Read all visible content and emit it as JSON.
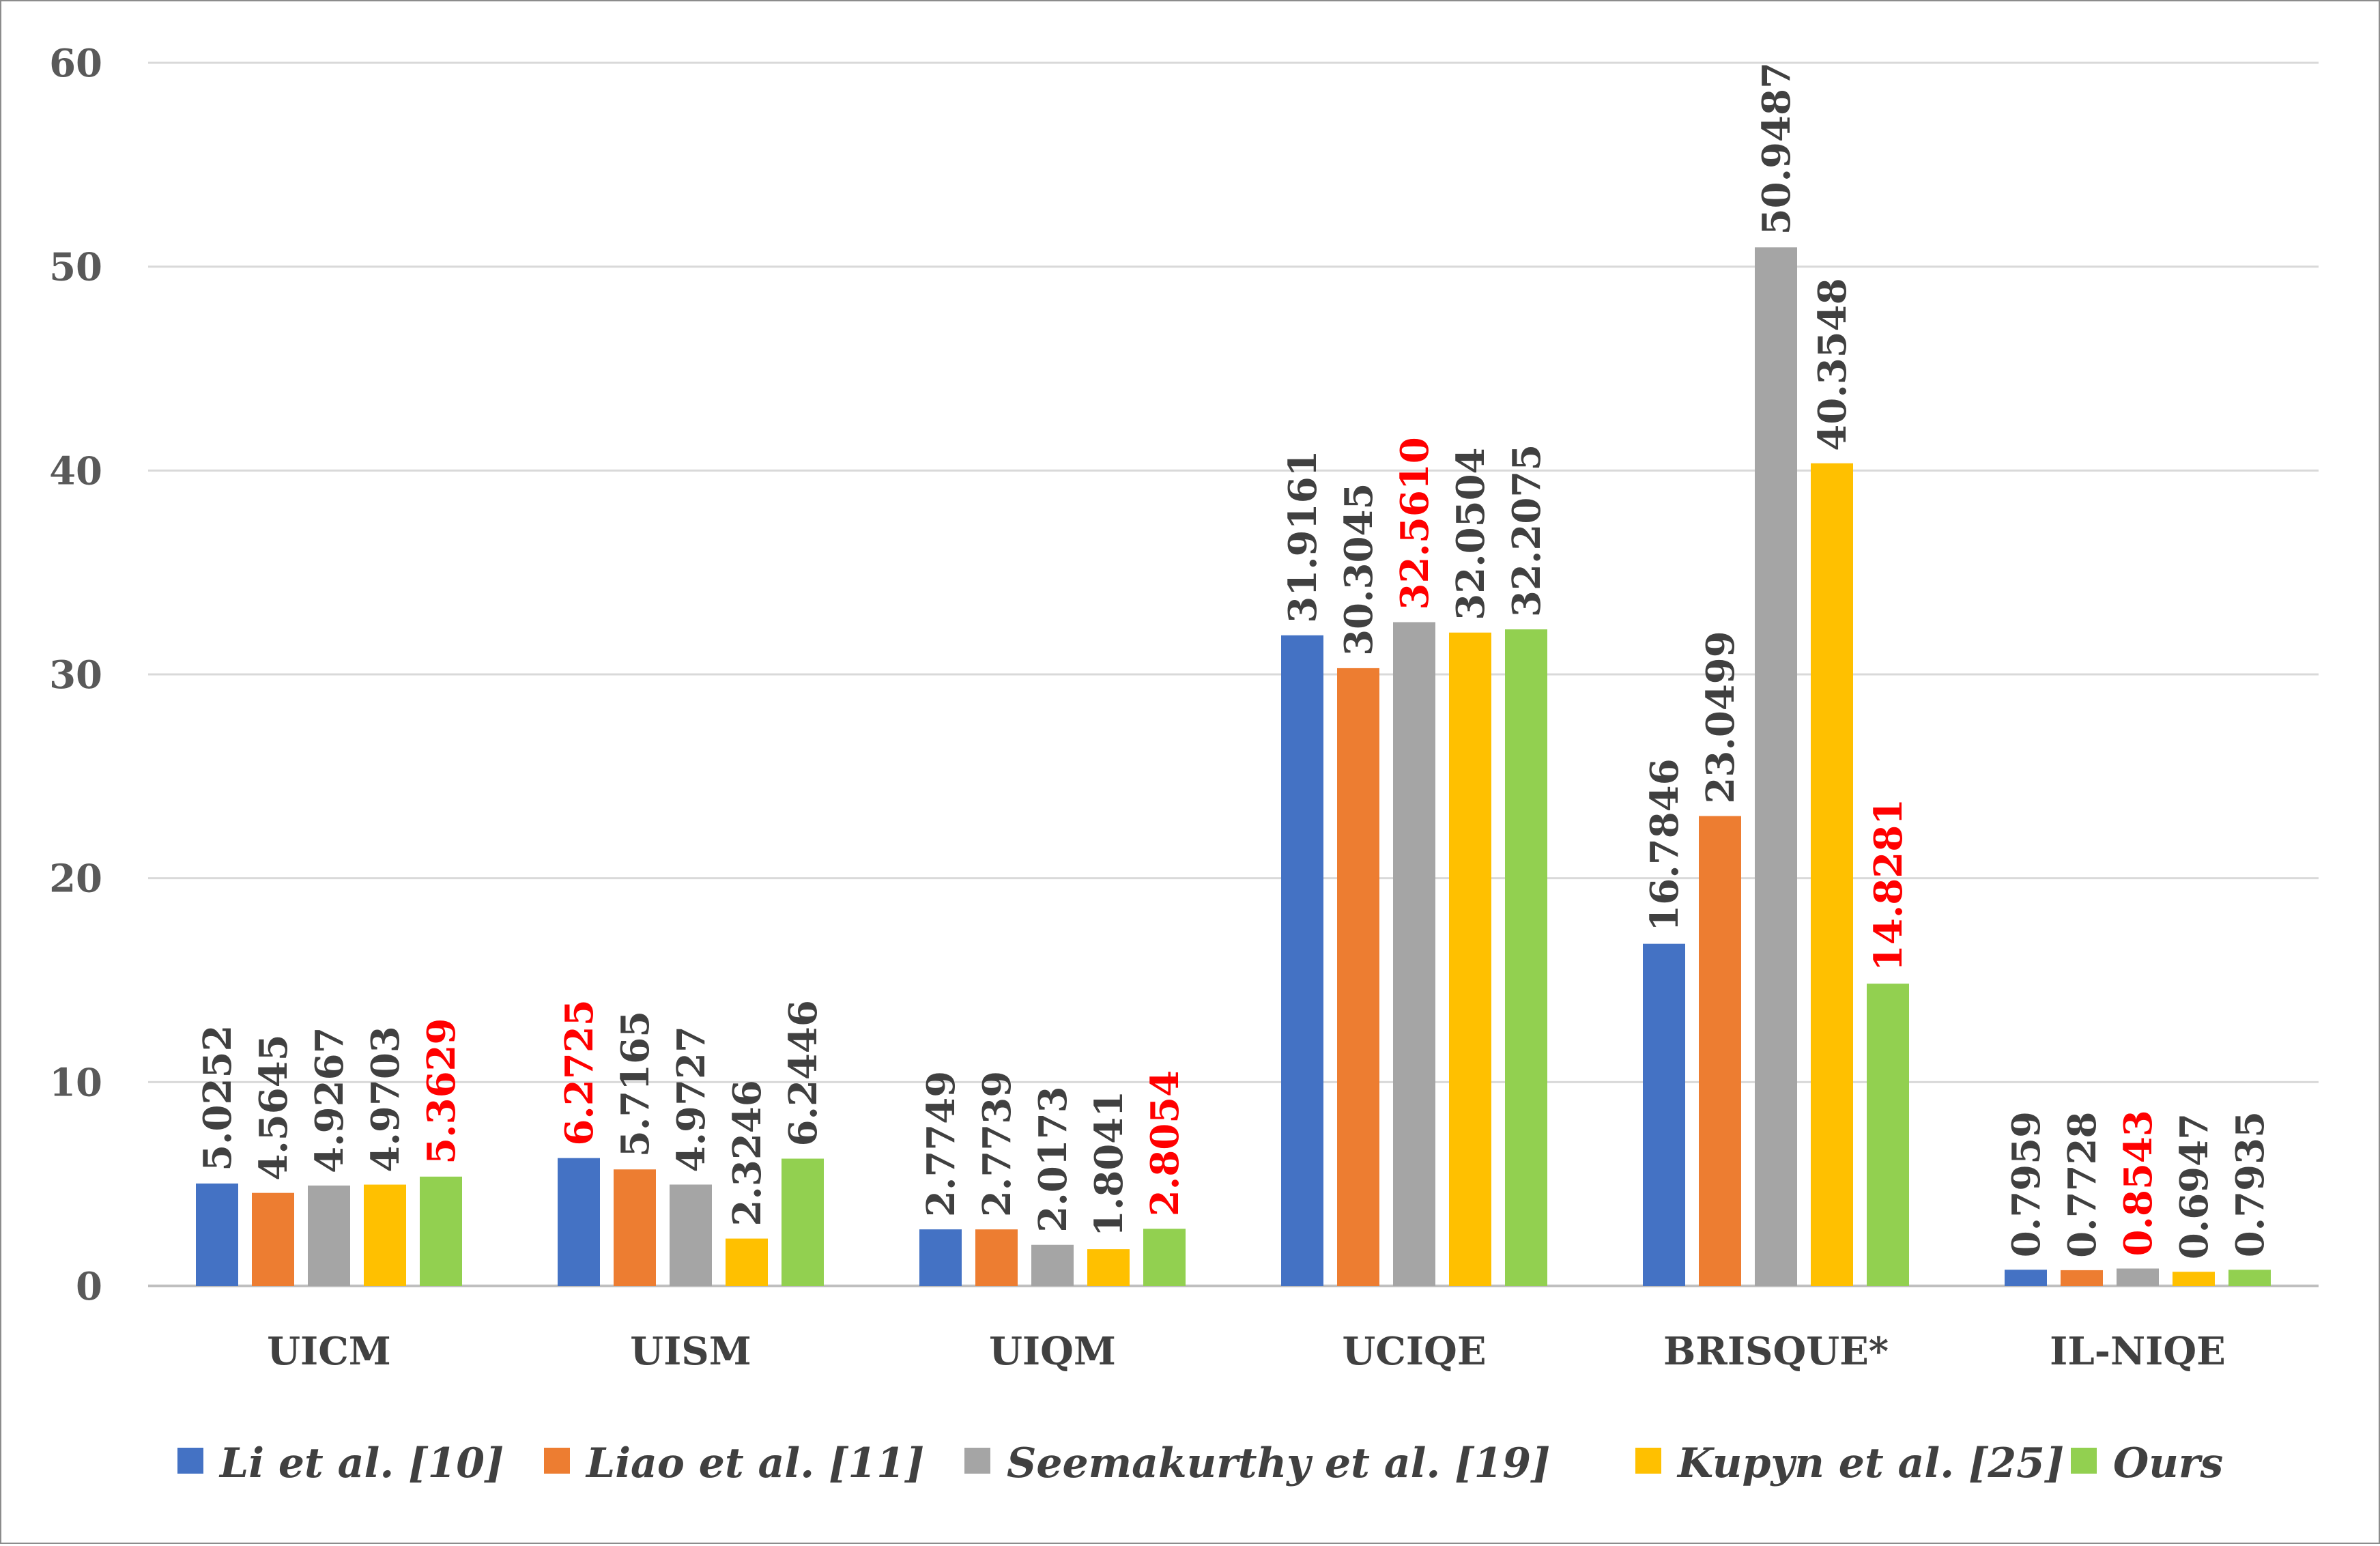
{
  "chart_data": {
    "type": "bar",
    "categories": [
      "UICM",
      "UISM",
      "UIQM",
      "UCIQE",
      "BRISQUE*",
      "IL-NIQE"
    ],
    "series": [
      {
        "name": "Li et al. [10]",
        "color": "#4472c4",
        "values": [
          5.0252,
          6.2725,
          2.7749,
          31.9161,
          16.7846,
          0.7959
        ],
        "labels": [
          "5.0252",
          "6.2725",
          "2.7749",
          "31.9161",
          "16.7846",
          "0.7959"
        ]
      },
      {
        "name": "Liao et al. [11]",
        "color": "#ed7d31",
        "values": [
          4.5645,
          5.7165,
          2.7739,
          30.3045,
          23.0499,
          0.7728
        ],
        "labels": [
          "4.5645",
          "5.7165",
          "2.7739",
          "30.3045",
          "23.0499",
          "0.7728"
        ]
      },
      {
        "name": "Seemakurthy et al. [19]",
        "color": "#a5a5a5",
        "values": [
          4.9267,
          4.9727,
          2.0173,
          32.561,
          50.9487,
          0.8543
        ],
        "labels": [
          "4.9267",
          "4.9727",
          "2.0173",
          "32.5610",
          "50.9487",
          "0.8543"
        ]
      },
      {
        "name": "Kupyn et al. [25]",
        "color": "#ffc000",
        "values": [
          4.9703,
          2.3246,
          1.8041,
          32.0504,
          40.3548,
          0.6947
        ],
        "labels": [
          "4.9703",
          "2.3246",
          "1.8041",
          "32.0504",
          "40.3548",
          "0.6947"
        ]
      },
      {
        "name": "Ours",
        "color": "#92d050",
        "values": [
          5.3629,
          6.2446,
          2.8054,
          32.2075,
          14.8281,
          0.7935
        ],
        "labels": [
          "5.3629",
          "6.2446",
          "2.8054",
          "32.2075",
          "14.8281",
          "0.7935"
        ]
      }
    ],
    "best": [
      [
        0,
        4
      ],
      [
        1,
        0
      ],
      [
        2,
        4
      ],
      [
        3,
        2
      ],
      [
        4,
        4
      ],
      [
        5,
        2
      ]
    ],
    "best_color": "#ff0000",
    "label_color": "#404040",
    "ylim": [
      0,
      60
    ],
    "yticks": [
      0,
      10,
      20,
      30,
      40,
      50,
      60
    ],
    "grid": true,
    "legend_position": "bottom"
  }
}
